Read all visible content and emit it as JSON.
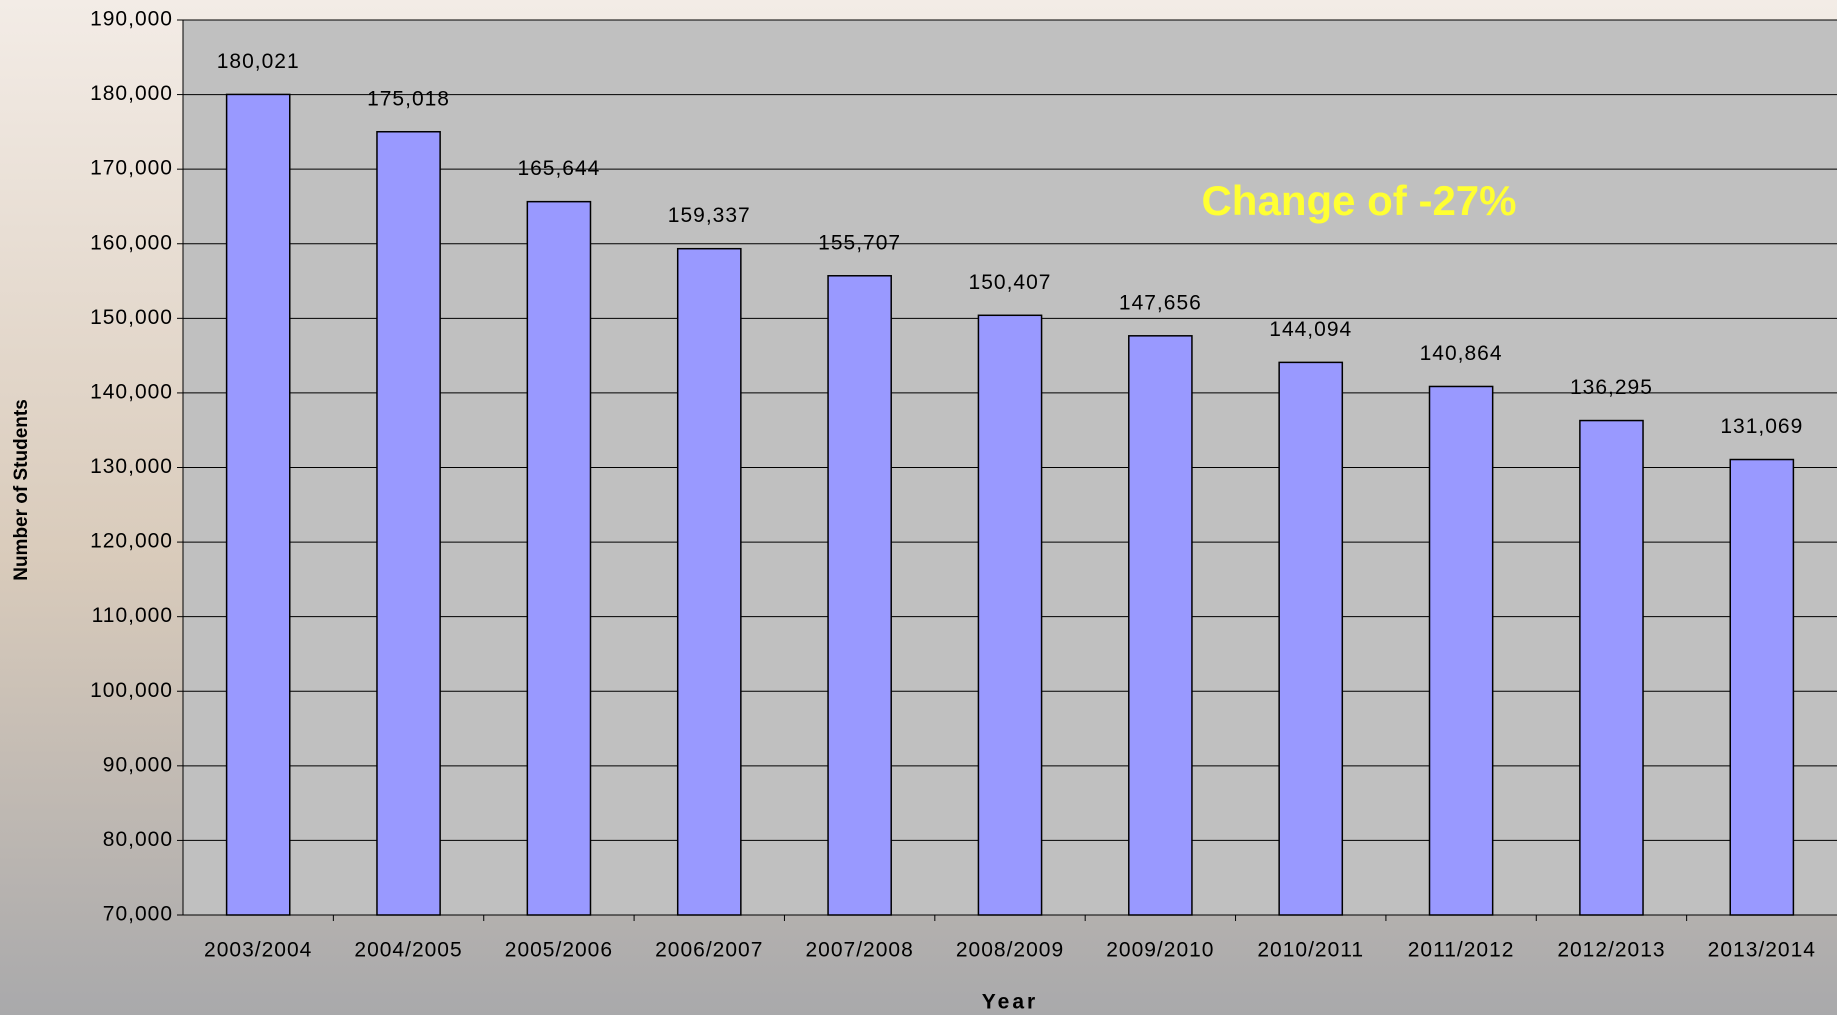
{
  "chart_data": {
    "type": "bar",
    "x_label": "Year",
    "y_label": "Number of Students",
    "annotation": "Change of -27%",
    "categories": [
      "2003/2004",
      "2004/2005",
      "2005/2006",
      "2006/2007",
      "2007/2008",
      "2008/2009",
      "2009/2010",
      "2010/2011",
      "2011/2012",
      "2012/2013",
      "2013/2014"
    ],
    "values": [
      180021,
      175018,
      165644,
      159337,
      155707,
      150407,
      147656,
      144094,
      140864,
      136295,
      131069
    ],
    "value_labels": [
      "180,021",
      "175,018",
      "165,644",
      "159,337",
      "155,707",
      "150,407",
      "147,656",
      "144,094",
      "140,864",
      "136,295",
      "131,069"
    ],
    "color": "#9999ff",
    "ylim": [
      70000,
      190000
    ],
    "yticks": [
      {
        "value": 70000,
        "label": "70,000"
      },
      {
        "value": 80000,
        "label": "80,000"
      },
      {
        "value": 90000,
        "label": "90,000"
      },
      {
        "value": 100000,
        "label": "100,000"
      },
      {
        "value": 110000,
        "label": "110,000"
      },
      {
        "value": 120000,
        "label": "120,000"
      },
      {
        "value": 130000,
        "label": "130,000"
      },
      {
        "value": 140000,
        "label": "140,000"
      },
      {
        "value": 150000,
        "label": "150,000"
      },
      {
        "value": 160000,
        "label": "160,000"
      },
      {
        "value": 170000,
        "label": "170,000"
      },
      {
        "value": 180000,
        "label": "180,000"
      },
      {
        "value": 190000,
        "label": "190,000"
      }
    ],
    "grid": true
  }
}
